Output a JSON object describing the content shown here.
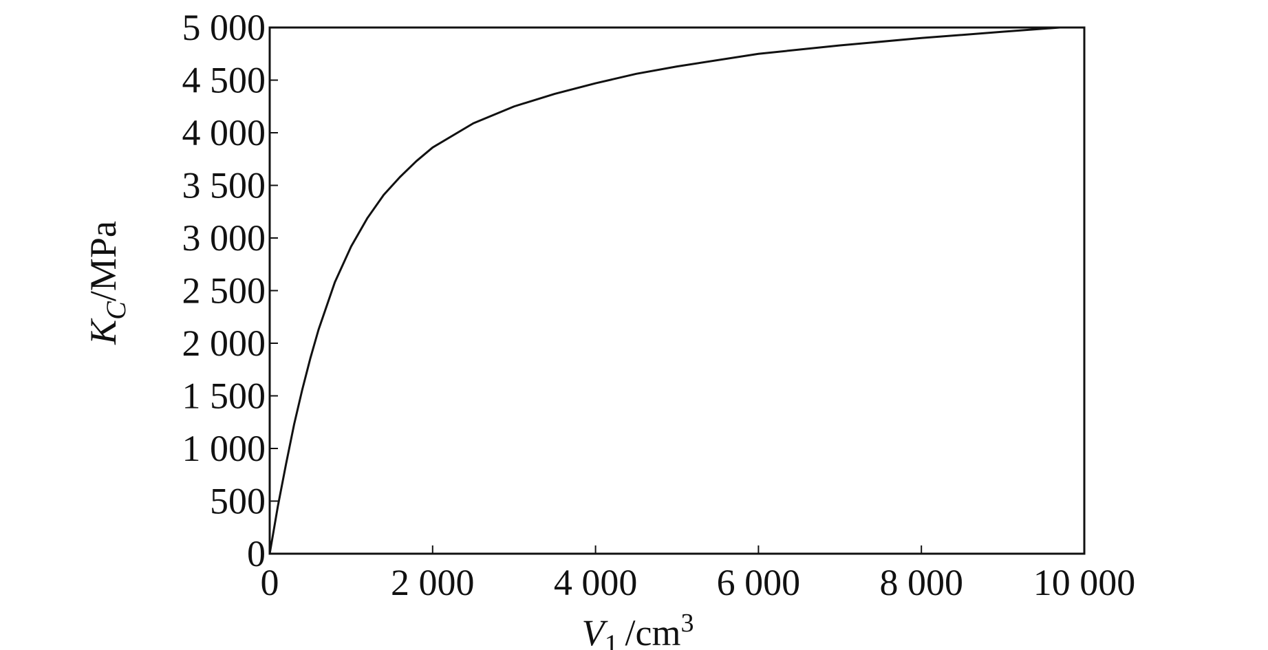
{
  "chart_data": {
    "type": "line",
    "title": "",
    "xlabel": {
      "symbol": "V",
      "subscript": "1",
      "unit_prefix": "/cm",
      "unit_power": "3"
    },
    "ylabel": {
      "symbol": "K",
      "subscript": "C",
      "unit": "/MPa"
    },
    "xlim": [
      0,
      10000
    ],
    "ylim": [
      0,
      5000
    ],
    "x_ticks": [
      0,
      2000,
      4000,
      6000,
      8000,
      10000
    ],
    "x_tick_labels": [
      "0",
      "2 000",
      "4 000",
      "6 000",
      "8 000",
      "10 000"
    ],
    "y_ticks": [
      0,
      500,
      1000,
      1500,
      2000,
      2500,
      3000,
      3500,
      4000,
      4500,
      5000
    ],
    "y_tick_labels": [
      "0",
      "500",
      "1 000",
      "1 500",
      "2 000",
      "2 500",
      "3 000",
      "3 500",
      "4 000",
      "4 500",
      "5 000"
    ],
    "grid": false,
    "series": [
      {
        "color": "#111111",
        "x": [
          0,
          100,
          200,
          300,
          400,
          500,
          600,
          800,
          1000,
          1200,
          1400,
          1600,
          1800,
          2000,
          2500,
          3000,
          3500,
          4000,
          4500,
          5000,
          6000,
          7000,
          8000,
          9000,
          9700,
          10000
        ],
        "y": [
          0,
          450,
          850,
          1230,
          1560,
          1860,
          2130,
          2580,
          2920,
          3190,
          3410,
          3580,
          3730,
          3860,
          4090,
          4250,
          4370,
          4470,
          4560,
          4630,
          4750,
          4830,
          4900,
          4960,
          5000,
          5000
        ]
      }
    ]
  }
}
